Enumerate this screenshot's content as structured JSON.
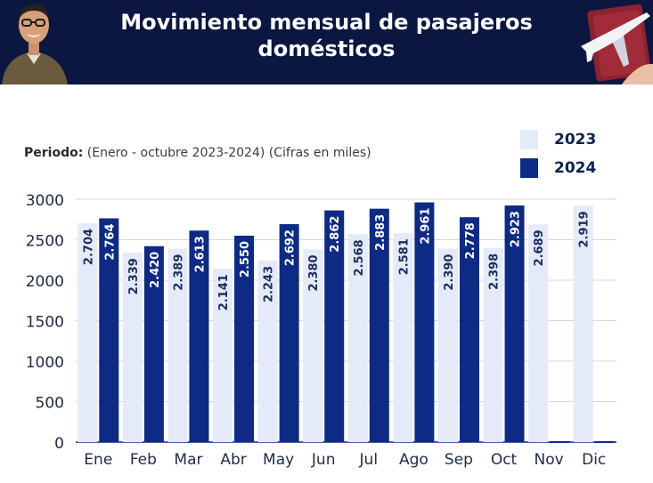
{
  "banner": {
    "title_line1": "Movimiento mensual de pasajeros",
    "title_line2": "domésticos"
  },
  "period": {
    "label": "Periodo:",
    "text": "(Enero - octubre 2023-2024) (Cifras en miles)"
  },
  "colors": {
    "banner_bg": "#0b1741",
    "series_2023": "#e4eaf8",
    "series_2024": "#0d2a85",
    "text_light_bar": "#1b2d5e",
    "text_dark_bar": "#ffffff"
  },
  "chart_data": {
    "type": "bar",
    "title": "Movimiento mensual de pasajeros domésticos",
    "xlabel": "",
    "ylabel": "Cifras en miles",
    "ylim": [
      0,
      3000
    ],
    "yticks": [
      0,
      500,
      1000,
      1500,
      2000,
      2500,
      3000
    ],
    "ytick_labels": [
      "0",
      "500",
      "1000",
      "1500",
      "2000",
      "2500",
      "3000"
    ],
    "grid": true,
    "legend_position": "top-right",
    "categories": [
      "Ene",
      "Feb",
      "Mar",
      "Abr",
      "May",
      "Jun",
      "Jul",
      "Ago",
      "Sep",
      "Oct",
      "Nov",
      "Dic"
    ],
    "series": [
      {
        "name": "2023",
        "values": [
          2704,
          2339,
          2389,
          2141,
          2243,
          2380,
          2568,
          2581,
          2390,
          2398,
          2689,
          2919
        ],
        "labels": [
          "2.704",
          "2.339",
          "2.389",
          "2.141",
          "2.243",
          "2.380",
          "2.568",
          "2.581",
          "2.390",
          "2.398",
          "2.689",
          "2.919"
        ]
      },
      {
        "name": "2024",
        "values": [
          2764,
          2420,
          2613,
          2550,
          2692,
          2862,
          2883,
          2961,
          2778,
          2923,
          null,
          null
        ],
        "labels": [
          "2.764",
          "2.420",
          "2.613",
          "2.550",
          "2.692",
          "2.862",
          "2.883",
          "2.961",
          "2.778",
          "2.923",
          "",
          ""
        ]
      }
    ]
  }
}
